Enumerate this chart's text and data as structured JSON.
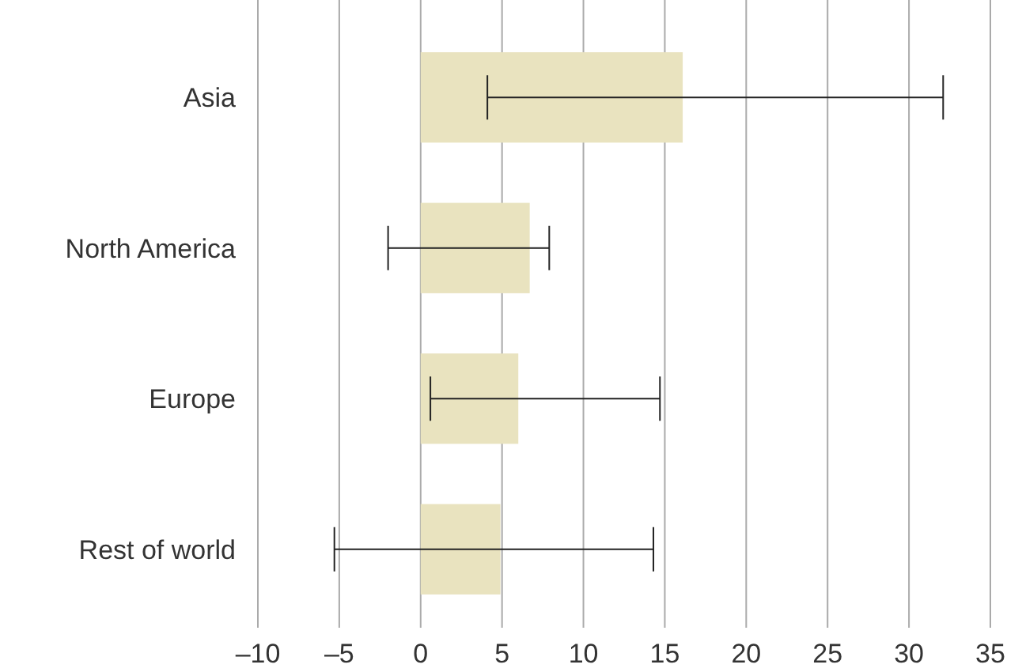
{
  "chart_data": {
    "type": "bar",
    "orientation": "horizontal",
    "categories": [
      "Asia",
      "North America",
      "Europe",
      "Rest of world"
    ],
    "values": [
      16.1,
      6.7,
      6.0,
      4.9
    ],
    "color": "#e9e3bf",
    "errors": [
      [
        4.1,
        32.1
      ],
      [
        -2.0,
        7.9
      ],
      [
        0.6,
        14.7
      ],
      [
        -5.3,
        14.3
      ]
    ],
    "xlim": [
      -10,
      35
    ],
    "xticks": [
      {
        "value": -10,
        "label": "–10"
      },
      {
        "value": -5,
        "label": "–5"
      },
      0,
      5,
      10,
      15,
      20,
      25,
      30,
      35
    ],
    "grid": "x"
  }
}
